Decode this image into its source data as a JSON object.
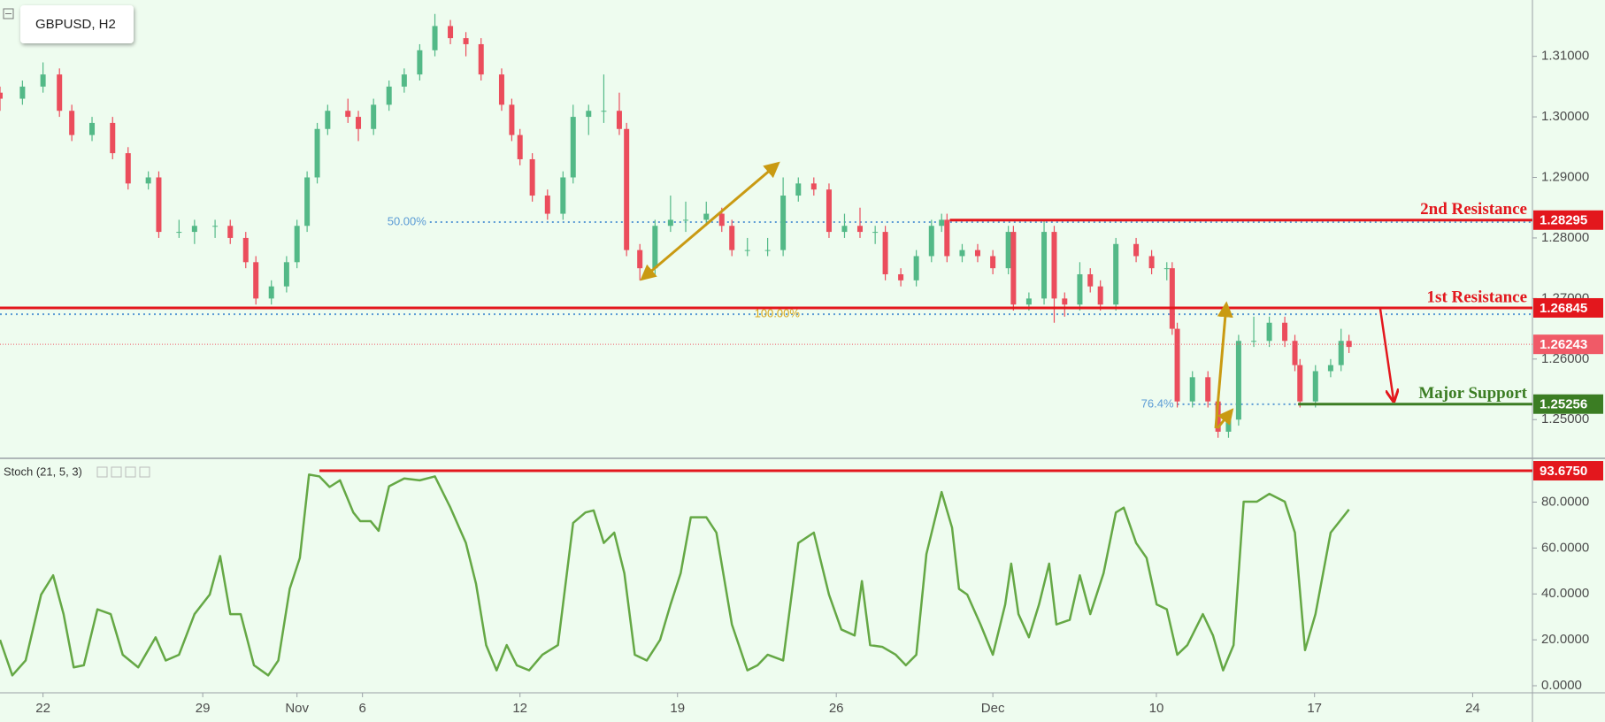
{
  "chart_data": [
    {
      "type": "candlestick",
      "title": "GBPUSD, H2",
      "up_color": "#53b987",
      "down_color": "#eb4d5c",
      "xlim": [
        -1.36,
        47.09
      ],
      "ylim": [
        1.24375,
        1.3193
      ],
      "yticks": [
        {
          "value": 1.25,
          "label": "1.25000"
        },
        {
          "value": 1.26,
          "label": "1.26000"
        },
        {
          "value": 1.27,
          "label": "1.27000"
        },
        {
          "value": 1.28,
          "label": "1.28000"
        },
        {
          "value": 1.29,
          "label": "1.29000"
        },
        {
          "value": 1.3,
          "label": "1.30000"
        },
        {
          "value": 1.31,
          "label": "1.31000"
        }
      ],
      "candles": [
        [
          -1.36,
          1.304,
          1.305,
          1.301,
          1.303
        ],
        [
          -0.65,
          1.303,
          1.306,
          1.302,
          1.305
        ],
        [
          0,
          1.305,
          1.309,
          1.304,
          1.307
        ],
        [
          0.52,
          1.307,
          1.308,
          1.3,
          1.301
        ],
        [
          0.91,
          1.301,
          1.302,
          1.296,
          1.297
        ],
        [
          1.55,
          1.297,
          1.3,
          1.296,
          1.299
        ],
        [
          2.2,
          1.299,
          1.3,
          1.293,
          1.294
        ],
        [
          2.69,
          1.294,
          1.295,
          1.288,
          1.289
        ],
        [
          3.33,
          1.289,
          1.291,
          1.288,
          1.29
        ],
        [
          3.66,
          1.29,
          1.291,
          1.28,
          1.281
        ],
        [
          4.3,
          1.281,
          1.283,
          1.28,
          1.281
        ],
        [
          4.79,
          1.281,
          1.283,
          1.279,
          1.282
        ],
        [
          5.44,
          1.282,
          1.283,
          1.28,
          1.282
        ],
        [
          5.92,
          1.282,
          1.283,
          1.279,
          1.28
        ],
        [
          6.41,
          1.28,
          1.281,
          1.275,
          1.276
        ],
        [
          6.73,
          1.276,
          1.277,
          1.269,
          1.27
        ],
        [
          7.22,
          1.27,
          1.273,
          1.269,
          1.272
        ],
        [
          7.7,
          1.272,
          1.277,
          1.271,
          1.276
        ],
        [
          8.03,
          1.276,
          1.283,
          1.275,
          1.282
        ],
        [
          8.35,
          1.282,
          1.291,
          1.281,
          1.29
        ],
        [
          8.67,
          1.29,
          1.299,
          1.289,
          1.298
        ],
        [
          9.0,
          1.298,
          1.302,
          1.297,
          1.301
        ],
        [
          9.64,
          1.301,
          1.303,
          1.299,
          1.3
        ],
        [
          9.97,
          1.3,
          1.301,
          1.296,
          1.298
        ],
        [
          10.45,
          1.298,
          1.303,
          1.297,
          1.302
        ],
        [
          10.94,
          1.302,
          1.306,
          1.301,
          1.305
        ],
        [
          11.42,
          1.305,
          1.308,
          1.304,
          1.307
        ],
        [
          11.91,
          1.307,
          1.312,
          1.306,
          1.311
        ],
        [
          12.39,
          1.311,
          1.317,
          1.31,
          1.315
        ],
        [
          12.88,
          1.315,
          1.316,
          1.312,
          1.313
        ],
        [
          13.37,
          1.313,
          1.314,
          1.31,
          1.312
        ],
        [
          13.85,
          1.312,
          1.313,
          1.306,
          1.307
        ],
        [
          14.5,
          1.307,
          1.308,
          1.301,
          1.302
        ],
        [
          14.82,
          1.302,
          1.303,
          1.296,
          1.297
        ],
        [
          15.08,
          1.297,
          1.298,
          1.292,
          1.293
        ],
        [
          15.47,
          1.293,
          1.294,
          1.286,
          1.287
        ],
        [
          15.95,
          1.287,
          1.288,
          1.283,
          1.284
        ],
        [
          16.44,
          1.284,
          1.291,
          1.283,
          1.29
        ],
        [
          16.76,
          1.29,
          1.302,
          1.289,
          1.3
        ],
        [
          17.25,
          1.3,
          1.302,
          1.297,
          1.301
        ],
        [
          17.73,
          1.301,
          1.307,
          1.299,
          1.301
        ],
        [
          18.22,
          1.301,
          1.304,
          1.297,
          1.298
        ],
        [
          18.45,
          1.298,
          1.299,
          1.277,
          1.278
        ],
        [
          18.87,
          1.278,
          1.279,
          1.273,
          1.275
        ],
        [
          19.35,
          1.275,
          1.283,
          1.274,
          1.282
        ],
        [
          19.84,
          1.282,
          1.287,
          1.281,
          1.283
        ],
        [
          20.32,
          1.283,
          1.286,
          1.281,
          1.283
        ],
        [
          20.97,
          1.283,
          1.286,
          1.282,
          1.284
        ],
        [
          21.46,
          1.284,
          1.285,
          1.281,
          1.282
        ],
        [
          21.78,
          1.282,
          1.283,
          1.277,
          1.278
        ],
        [
          22.27,
          1.278,
          1.28,
          1.277,
          1.278
        ],
        [
          22.91,
          1.278,
          1.28,
          1.277,
          1.278
        ],
        [
          23.4,
          1.278,
          1.29,
          1.277,
          1.287
        ],
        [
          23.88,
          1.287,
          1.29,
          1.286,
          1.289
        ],
        [
          24.37,
          1.289,
          1.29,
          1.287,
          1.288
        ],
        [
          24.85,
          1.288,
          1.289,
          1.28,
          1.281
        ],
        [
          25.34,
          1.281,
          1.284,
          1.28,
          1.282
        ],
        [
          25.83,
          1.282,
          1.285,
          1.28,
          1.281
        ],
        [
          26.31,
          1.281,
          1.282,
          1.279,
          1.281
        ],
        [
          26.63,
          1.281,
          1.282,
          1.273,
          1.274
        ],
        [
          27.12,
          1.274,
          1.275,
          1.272,
          1.273
        ],
        [
          27.61,
          1.273,
          1.278,
          1.272,
          1.277
        ],
        [
          28.09,
          1.277,
          1.283,
          1.276,
          1.282
        ],
        [
          28.41,
          1.282,
          1.284,
          1.281,
          1.283
        ],
        [
          28.58,
          1.283,
          1.284,
          1.276,
          1.277
        ],
        [
          29.06,
          1.277,
          1.279,
          1.276,
          1.278
        ],
        [
          29.55,
          1.278,
          1.279,
          1.276,
          1.277
        ],
        [
          30.03,
          1.277,
          1.278,
          1.274,
          1.275
        ],
        [
          30.52,
          1.275,
          1.282,
          1.274,
          1.281
        ],
        [
          30.68,
          1.281,
          1.282,
          1.268,
          1.269
        ],
        [
          31.17,
          1.269,
          1.271,
          1.268,
          1.27
        ],
        [
          31.65,
          1.27,
          1.283,
          1.269,
          1.281
        ],
        [
          31.97,
          1.281,
          1.282,
          1.266,
          1.27
        ],
        [
          32.3,
          1.27,
          1.271,
          1.267,
          1.269
        ],
        [
          32.78,
          1.269,
          1.276,
          1.268,
          1.274
        ],
        [
          33.11,
          1.274,
          1.275,
          1.271,
          1.272
        ],
        [
          33.43,
          1.272,
          1.273,
          1.268,
          1.269
        ],
        [
          33.92,
          1.269,
          1.28,
          1.268,
          1.279
        ],
        [
          34.56,
          1.279,
          1.28,
          1.276,
          1.277
        ],
        [
          35.05,
          1.277,
          1.278,
          1.274,
          1.275
        ],
        [
          35.53,
          1.275,
          1.276,
          1.273,
          1.275
        ],
        [
          35.7,
          1.275,
          1.276,
          1.264,
          1.265
        ],
        [
          35.86,
          1.265,
          1.266,
          1.252,
          1.253
        ],
        [
          36.34,
          1.253,
          1.258,
          1.252,
          1.257
        ],
        [
          36.83,
          1.257,
          1.258,
          1.252,
          1.253
        ],
        [
          37.15,
          1.253,
          1.254,
          1.247,
          1.248
        ],
        [
          37.48,
          1.248,
          1.251,
          1.247,
          1.25
        ],
        [
          37.8,
          1.25,
          1.264,
          1.249,
          1.263
        ],
        [
          38.28,
          1.263,
          1.267,
          1.262,
          1.263
        ],
        [
          38.77,
          1.263,
          1.267,
          1.262,
          1.266
        ],
        [
          39.26,
          1.266,
          1.267,
          1.262,
          1.263
        ],
        [
          39.58,
          1.263,
          1.264,
          1.258,
          1.259
        ],
        [
          39.74,
          1.259,
          1.26,
          1.252,
          1.253
        ],
        [
          40.23,
          1.253,
          1.259,
          1.252,
          1.258
        ],
        [
          40.71,
          1.258,
          1.26,
          1.257,
          1.259
        ],
        [
          41.04,
          1.259,
          1.265,
          1.258,
          1.263
        ],
        [
          41.29,
          1.263,
          1.264,
          1.261,
          1.262
        ]
      ],
      "levels": [
        {
          "name": "2nd Resistance",
          "value": 1.28295,
          "color": "#e3171d",
          "line_style": "solid",
          "x_start": 28.67
        },
        {
          "name": "1st Resistance",
          "value": 1.26845,
          "color": "#e3171d",
          "line_style": "solid"
        },
        {
          "value": 1.26243,
          "color": "#f05a67",
          "line_style": "dotted"
        },
        {
          "name": "Major Support",
          "value": 1.25256,
          "color": "#3b7d23",
          "line_style": "solid",
          "x_start": 39.68
        }
      ],
      "fib_levels": [
        {
          "label": "50.00%",
          "value": 1.28262,
          "color": "#5b9bd5",
          "label_color": "#5b9bd5",
          "x_start": 12.23
        },
        {
          "label": "100.00%",
          "value": 1.26741,
          "color": "#5b9bd5",
          "label_color": "#d9a81e",
          "label_x": 22.49
        },
        {
          "label": "76.4%",
          "value": 1.25254,
          "color": "#5b9bd5",
          "label_color": "#5b9bd5",
          "x_start": 35.86,
          "x_end": 39.68
        }
      ]
    },
    {
      "type": "line",
      "title": "Stoch (21, 5, 3)",
      "color": "#65a845",
      "xlim": [
        -1.36,
        47.09
      ],
      "ylim": [
        -2.7,
        98.7
      ],
      "yticks": [
        {
          "value": 0,
          "label": "0.0000"
        },
        {
          "value": 20,
          "label": "20.0000"
        },
        {
          "value": 40,
          "label": "40.0000"
        },
        {
          "value": 60,
          "label": "60.0000"
        },
        {
          "value": 80,
          "label": "80.0000"
        }
      ],
      "xticks": [
        {
          "value": 0,
          "label": "22"
        },
        {
          "value": 5.05,
          "label": "29"
        },
        {
          "value": 8.03,
          "label": "Nov"
        },
        {
          "value": 10.1,
          "label": "6"
        },
        {
          "value": 15.08,
          "label": "12"
        },
        {
          "value": 20.06,
          "label": "19"
        },
        {
          "value": 25.08,
          "label": "26"
        },
        {
          "value": 30.03,
          "label": "Dec"
        },
        {
          "value": 35.2,
          "label": "10"
        },
        {
          "value": 40.2,
          "label": "17"
        },
        {
          "value": 45.2,
          "label": "24"
        }
      ],
      "x": [
        -1.36,
        -0.97,
        -0.55,
        -0.06,
        0.32,
        0.65,
        0.97,
        1.29,
        1.72,
        2.14,
        2.52,
        3.01,
        3.56,
        3.88,
        4.3,
        4.79,
        5.27,
        5.6,
        5.92,
        6.25,
        6.67,
        7.12,
        7.44,
        7.8,
        8.12,
        8.41,
        8.74,
        9.06,
        9.39,
        9.81,
        10.03,
        10.36,
        10.61,
        10.94,
        11.42,
        11.91,
        12.39,
        12.88,
        13.37,
        13.69,
        14.01,
        14.34,
        14.66,
        14.98,
        15.37,
        15.79,
        16.28,
        16.76,
        17.15,
        17.41,
        17.73,
        18.06,
        18.38,
        18.71,
        19.09,
        19.51,
        19.84,
        20.16,
        20.48,
        20.97,
        21.29,
        21.78,
        22.27,
        22.59,
        22.91,
        23.4,
        23.88,
        24.37,
        24.85,
        25.24,
        25.66,
        25.89,
        26.15,
        26.54,
        26.96,
        27.28,
        27.61,
        27.93,
        28.41,
        28.74,
        28.96,
        29.22,
        29.64,
        30.03,
        30.42,
        30.61,
        30.84,
        31.17,
        31.49,
        31.81,
        32.04,
        32.46,
        32.78,
        33.11,
        33.53,
        33.92,
        34.17,
        34.56,
        34.89,
        35.21,
        35.53,
        35.86,
        36.18,
        36.67,
        36.99,
        37.31,
        37.64,
        37.96,
        38.38,
        38.77,
        39.26,
        39.58,
        39.9,
        40.23,
        40.71,
        41.29
      ],
      "values": [
        20.0,
        4.5,
        11.0,
        39.7,
        48.1,
        31.2,
        8.0,
        8.9,
        33.3,
        31.2,
        13.5,
        8.0,
        21.1,
        11.0,
        13.5,
        31.2,
        39.7,
        56.5,
        31.2,
        31.2,
        8.9,
        4.5,
        11.0,
        42.2,
        55.7,
        92.0,
        91.2,
        86.6,
        89.5,
        75.5,
        71.7,
        71.7,
        67.5,
        86.9,
        90.3,
        89.5,
        91.2,
        77.6,
        62.2,
        44.4,
        17.7,
        6.7,
        17.7,
        8.9,
        6.7,
        13.5,
        17.7,
        70.9,
        75.5,
        76.4,
        62.2,
        66.7,
        49.0,
        13.5,
        11.0,
        20.0,
        35.4,
        49.0,
        73.4,
        73.4,
        66.7,
        26.7,
        6.7,
        8.9,
        13.5,
        11.0,
        62.2,
        66.7,
        39.7,
        24.5,
        21.9,
        45.6,
        17.7,
        16.9,
        13.5,
        8.9,
        13.5,
        57.4,
        84.4,
        68.9,
        42.2,
        39.7,
        26.7,
        13.5,
        35.4,
        53.2,
        31.2,
        21.1,
        35.4,
        53.2,
        26.7,
        28.7,
        48.1,
        31.2,
        49.0,
        75.5,
        77.6,
        62.2,
        55.7,
        35.4,
        33.3,
        13.5,
        17.7,
        31.2,
        21.9,
        6.7,
        17.7,
        80.2,
        80.2,
        83.6,
        80.2,
        66.7,
        15.5,
        31.2,
        66.7,
        76.8
      ],
      "levels": [
        {
          "value": 93.675,
          "label": "93.6750",
          "color": "#e3171d",
          "line_style": "solid",
          "x_start": 8.74
        }
      ]
    }
  ]
}
